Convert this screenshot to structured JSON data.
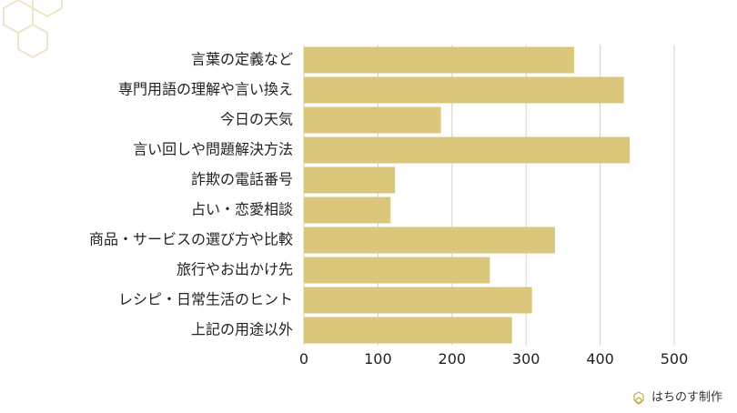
{
  "chart_data": {
    "type": "bar",
    "orientation": "horizontal",
    "categories": [
      "言葉の定義など",
      "専門用語の理解や言い換え",
      "今日の天気",
      "言い回しや問題解決方法",
      "詐欺の電話番号",
      "占い・恋愛相談",
      "商品・サービスの選び方や比較",
      "旅行やお出かけ先",
      "レシピ・日常生活のヒント",
      "上記の用途以外"
    ],
    "values": [
      365,
      432,
      185,
      440,
      123,
      117,
      339,
      251,
      308,
      281
    ],
    "color": "#dac77b",
    "xlim": [
      0,
      500
    ],
    "xticks": [
      0,
      100,
      200,
      300,
      400,
      500
    ],
    "grid": true
  },
  "watermark": "はちのす制作"
}
